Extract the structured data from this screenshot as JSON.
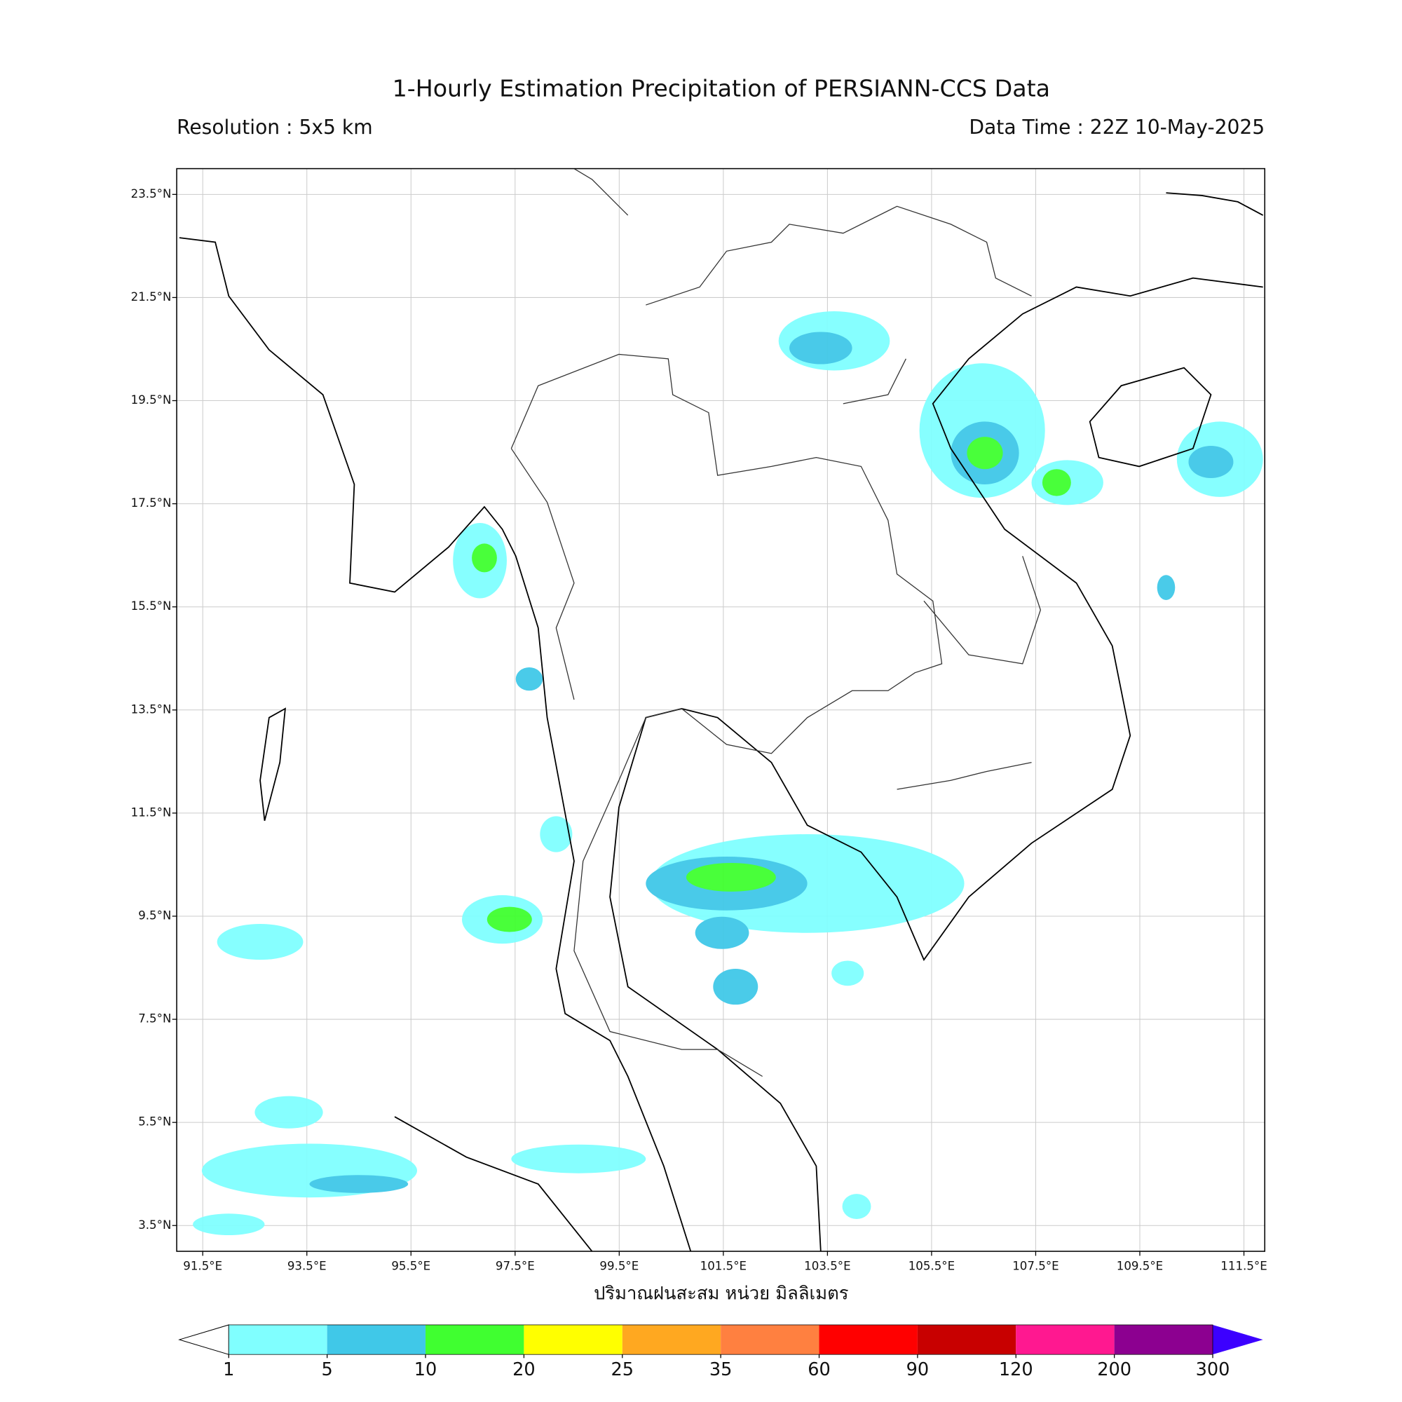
{
  "header": {
    "title": "1-Hourly Estimation Precipitation of PERSIANN-CCS Data",
    "resolution": "Resolution : 5x5 km",
    "data_time": "Data Time : 22Z 10-May-2025"
  },
  "map": {
    "xlim": [
      91.0,
      111.9
    ],
    "ylim": [
      3.0,
      24.0
    ],
    "grid": true,
    "xticks": [
      {
        "value": 91.5,
        "label": "91.5°E"
      },
      {
        "value": 93.5,
        "label": "93.5°E"
      },
      {
        "value": 95.5,
        "label": "95.5°E"
      },
      {
        "value": 97.5,
        "label": "97.5°E"
      },
      {
        "value": 99.5,
        "label": "99.5°E"
      },
      {
        "value": 101.5,
        "label": "101.5°E"
      },
      {
        "value": 103.5,
        "label": "103.5°E"
      },
      {
        "value": 105.5,
        "label": "105.5°E"
      },
      {
        "value": 107.5,
        "label": "107.5°E"
      },
      {
        "value": 109.5,
        "label": "109.5°E"
      },
      {
        "value": 111.5,
        "label": "111.5°E"
      }
    ],
    "yticks": [
      {
        "value": 3.5,
        "label": "3.5°N"
      },
      {
        "value": 5.5,
        "label": "5.5°N"
      },
      {
        "value": 7.5,
        "label": "7.5°N"
      },
      {
        "value": 9.5,
        "label": "9.5°N"
      },
      {
        "value": 11.5,
        "label": "11.5°N"
      },
      {
        "value": 13.5,
        "label": "13.5°N"
      },
      {
        "value": 15.5,
        "label": "15.5°N"
      },
      {
        "value": 17.5,
        "label": "17.5°N"
      },
      {
        "value": 19.5,
        "label": "19.5°N"
      },
      {
        "value": 21.5,
        "label": "21.5°N"
      },
      {
        "value": 23.5,
        "label": "23.5°N"
      }
    ],
    "xlabel": "ปริมาณฝนสะสม หน่วย มิลลิเมตร"
  },
  "colorbar": {
    "ticks": [
      1,
      5,
      10,
      20,
      25,
      35,
      60,
      90,
      120,
      200,
      300
    ],
    "colors": [
      "#80ffff",
      "#40c8e8",
      "#40ff30",
      "#ffff00",
      "#ffa820",
      "#ff8040",
      "#ff0000",
      "#c80000",
      "#ff1890",
      "#8c0090"
    ],
    "under_color": "#ffffff",
    "over_color": "#3c00ff"
  }
}
